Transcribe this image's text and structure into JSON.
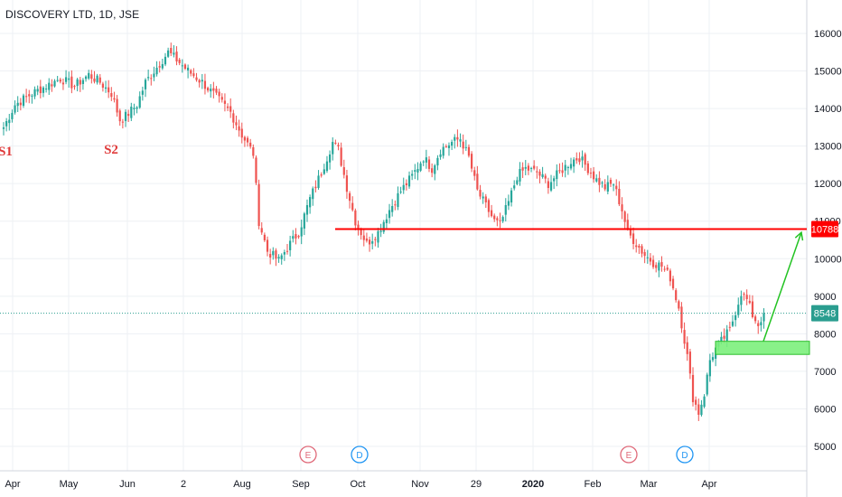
{
  "header": {
    "ticker": "DISCOVERY LTD, 1D, JSE"
  },
  "colors": {
    "bull": "#26a69a",
    "bear": "#ef5350",
    "resistance": "#ff0000",
    "support_zone": "#7cf07c",
    "arrow": "#22c322",
    "current_line": "#2a9d8f",
    "earnings": "#e06b7a",
    "dividend": "#2196f3"
  },
  "chart_data": {
    "type": "candlestick",
    "title": "DISCOVERY LTD, 1D, JSE",
    "ylim": [
      4550,
      16900
    ],
    "y_ticks": [
      5000,
      6000,
      7000,
      8000,
      9000,
      10000,
      11000,
      12000,
      13000,
      14000,
      15000,
      16000
    ],
    "x_tick_labels": [
      "Apr",
      "May",
      "Jun",
      "2",
      "Aug",
      "Sep",
      "Oct",
      "Nov",
      "29",
      "2020",
      "Feb",
      "Mar",
      "Apr"
    ],
    "bold_x_labels": [
      "2020"
    ],
    "anchors": [
      [
        0,
        13500
      ],
      [
        4,
        14100
      ],
      [
        10,
        14400
      ],
      [
        15,
        14600
      ],
      [
        20,
        14800
      ],
      [
        25,
        14600
      ],
      [
        30,
        14900
      ],
      [
        34,
        14700
      ],
      [
        38,
        14400
      ],
      [
        41,
        13700
      ],
      [
        43,
        13800
      ],
      [
        47,
        14100
      ],
      [
        50,
        14700
      ],
      [
        54,
        15100
      ],
      [
        58,
        15500
      ],
      [
        61,
        15300
      ],
      [
        65,
        15000
      ],
      [
        70,
        14700
      ],
      [
        75,
        14300
      ],
      [
        80,
        13900
      ],
      [
        84,
        13300
      ],
      [
        88,
        12800
      ],
      [
        90,
        11000
      ],
      [
        93,
        10200
      ],
      [
        97,
        9950
      ],
      [
        100,
        10300
      ],
      [
        104,
        10700
      ],
      [
        108,
        11600
      ],
      [
        112,
        12300
      ],
      [
        116,
        13100
      ],
      [
        118,
        12900
      ],
      [
        121,
        11900
      ],
      [
        124,
        11000
      ],
      [
        128,
        10400
      ],
      [
        132,
        10700
      ],
      [
        136,
        11300
      ],
      [
        140,
        11800
      ],
      [
        144,
        12200
      ],
      [
        148,
        12700
      ],
      [
        151,
        12400
      ],
      [
        154,
        12900
      ],
      [
        158,
        13100
      ],
      [
        161,
        13200
      ],
      [
        164,
        12700
      ],
      [
        167,
        11800
      ],
      [
        170,
        11400
      ],
      [
        173,
        11000
      ],
      [
        175,
        10900
      ],
      [
        178,
        11500
      ],
      [
        181,
        12200
      ],
      [
        184,
        12400
      ],
      [
        188,
        12300
      ],
      [
        192,
        12000
      ],
      [
        196,
        12300
      ],
      [
        200,
        12600
      ],
      [
        203,
        12700
      ],
      [
        206,
        12400
      ],
      [
        209,
        12100
      ],
      [
        212,
        11900
      ],
      [
        215,
        12000
      ],
      [
        218,
        11300
      ],
      [
        220,
        10700
      ],
      [
        223,
        10400
      ],
      [
        226,
        10100
      ],
      [
        229,
        9900
      ],
      [
        232,
        9800
      ],
      [
        235,
        9500
      ],
      [
        238,
        8700
      ],
      [
        241,
        7400
      ],
      [
        243,
        6300
      ],
      [
        245,
        5900
      ],
      [
        247,
        6400
      ],
      [
        249,
        7300
      ],
      [
        251,
        7600
      ],
      [
        253,
        7800
      ],
      [
        256,
        8100
      ],
      [
        258,
        8600
      ],
      [
        260,
        9100
      ],
      [
        262,
        8900
      ],
      [
        264,
        8500
      ],
      [
        266,
        8250
      ],
      [
        268,
        8548
      ]
    ],
    "resistance": {
      "value": 10788,
      "label": "10788"
    },
    "current_price": {
      "value": 8548,
      "label": "8548"
    },
    "support_zone": [
      7450,
      7800
    ],
    "projection": {
      "from": 7800,
      "to": 10700
    },
    "annotations": [
      {
        "text": "S1",
        "x_label": "Apr"
      },
      {
        "text": "S2",
        "x_label": "May"
      }
    ],
    "events": [
      {
        "type": "E",
        "near": "Sep"
      },
      {
        "type": "D",
        "near": "Oct"
      },
      {
        "type": "E",
        "near": "Feb"
      },
      {
        "type": "D",
        "near": "Mar"
      }
    ]
  }
}
